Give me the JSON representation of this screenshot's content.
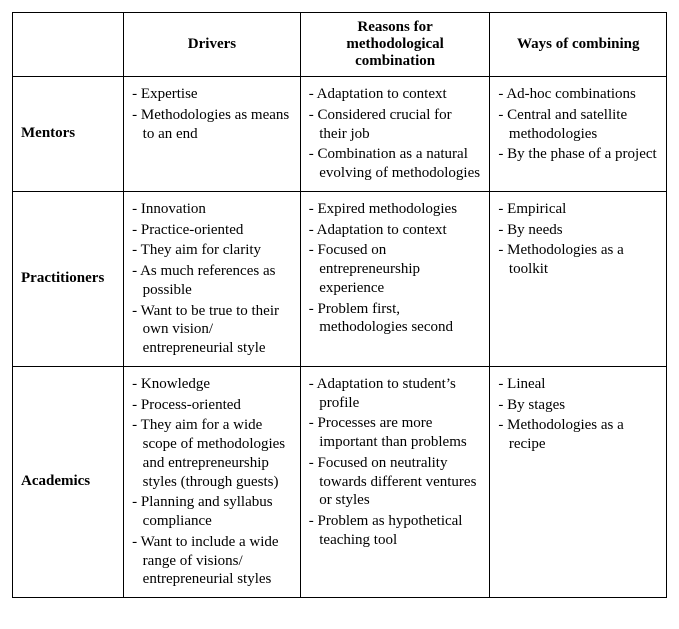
{
  "table": {
    "columns": [
      "",
      "Drivers",
      "Reasons for methodological combination",
      "Ways of combining"
    ],
    "rows": [
      {
        "label": "Mentors",
        "drivers": [
          "Expertise",
          "Methodologies as means to an end"
        ],
        "reasons": [
          "Adaptation to context",
          "Considered crucial for their job",
          "Combination as a natural evolving of methodologies"
        ],
        "ways": [
          "Ad-hoc combinations",
          "Central and satellite methodologies",
          "By the phase of a project"
        ]
      },
      {
        "label": "Practitioners",
        "drivers": [
          "Innovation",
          "Practice-oriented",
          "They aim for clarity",
          "As much references as possible",
          "Want to be true to their own vision/ entrepreneurial style"
        ],
        "reasons": [
          "Expired methodologies",
          "Adaptation to context",
          "Focused on entrepreneurship experience",
          "Problem first, methodologies second"
        ],
        "ways": [
          "Empirical",
          "By needs",
          "Methodologies as a toolkit"
        ]
      },
      {
        "label": "Academics",
        "drivers": [
          "Knowledge",
          "Process-oriented",
          "They aim for a wide scope of methodologies and entrepreneurship styles (through guests)",
          "Planning and syllabus compliance",
          "Want to include a wide range of visions/ entrepreneurial styles"
        ],
        "reasons": [
          "Adaptation to student’s profile",
          "Processes are more important than problems",
          "Focused on neutrality towards different ventures or styles",
          "Problem as hypothetical teaching tool"
        ],
        "ways": [
          "Lineal",
          "By stages",
          "Methodologies as a recipe"
        ]
      }
    ]
  }
}
